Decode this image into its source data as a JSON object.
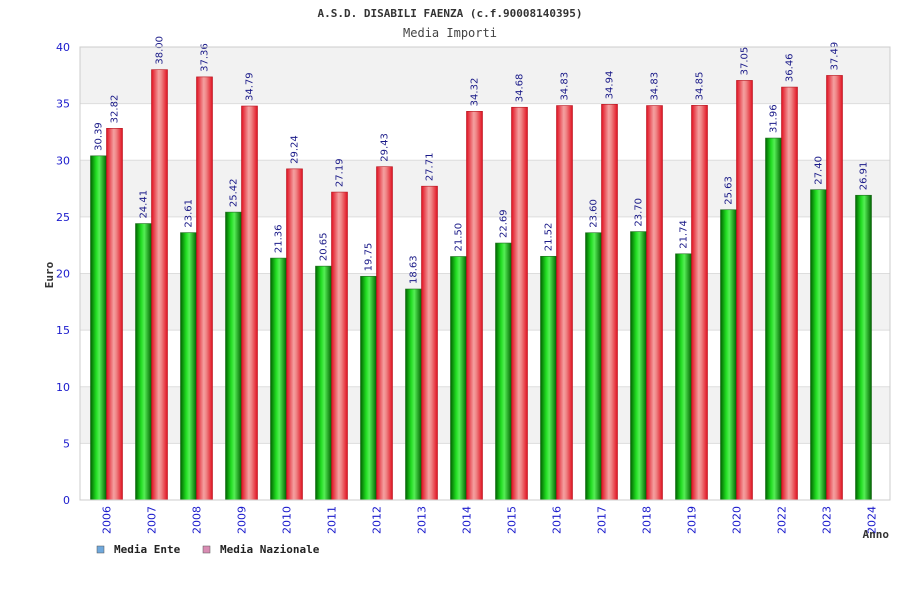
{
  "chart_data": {
    "type": "bar",
    "title": "A.S.D. DISABILI FAENZA (c.f.90008140395)",
    "subtitle": "Media Importi",
    "xlabel": "Anno",
    "ylabel": "Euro",
    "ylim": [
      0,
      40
    ],
    "yticks": [
      0,
      5,
      10,
      15,
      20,
      25,
      30,
      35,
      40
    ],
    "grid": true,
    "legend_position": "bottom-left",
    "categories": [
      "2006",
      "2007",
      "2008",
      "2009",
      "2010",
      "2011",
      "2012",
      "2013",
      "2014",
      "2015",
      "2016",
      "2017",
      "2018",
      "2019",
      "2020",
      "2022",
      "2023",
      "2024"
    ],
    "series": [
      {
        "name": "Media Ente",
        "color": "#00aa00",
        "legend_color": "#6fa8dc",
        "values": [
          30.39,
          24.41,
          23.61,
          25.42,
          21.36,
          20.65,
          19.75,
          18.63,
          21.5,
          22.69,
          21.52,
          23.6,
          23.7,
          21.74,
          25.63,
          31.96,
          27.4,
          26.91
        ],
        "labels": [
          "30.39",
          "24.41",
          "23.61",
          "25.42",
          "21.36",
          "20.65",
          "19.75",
          "18.63",
          "21.50",
          "22.69",
          "21.52",
          "23.60",
          "23.70",
          "21.74",
          "25.63",
          "31.96",
          "27.40",
          "26.91"
        ]
      },
      {
        "name": "Media Nazionale",
        "color": "#e0202a",
        "legend_color": "#d98cb3",
        "values": [
          32.82,
          38.0,
          37.36,
          34.79,
          29.24,
          27.19,
          29.43,
          27.71,
          34.32,
          34.68,
          34.83,
          34.94,
          34.83,
          34.85,
          37.05,
          36.46,
          37.49,
          null
        ],
        "labels": [
          "32.82",
          "38.00",
          "37.36",
          "34.79",
          "29.24",
          "27.19",
          "29.43",
          "27.71",
          "34.32",
          "34.68",
          "34.83",
          "34.94",
          "34.83",
          "34.85",
          "37.05",
          "36.46",
          "37.49",
          ""
        ]
      }
    ]
  }
}
